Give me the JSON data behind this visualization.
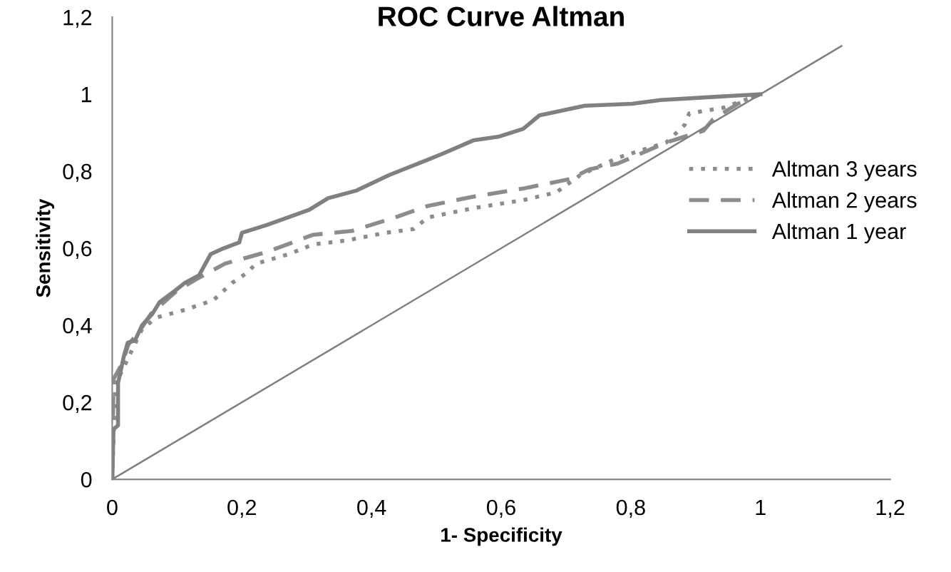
{
  "chart_data": {
    "type": "line",
    "title": "ROC Curve Altman",
    "xlabel": "1- Specificity",
    "ylabel": "Sensitivity",
    "xlim": [
      0,
      1.2
    ],
    "xticks": [
      {
        "value": 0,
        "label": "0"
      },
      {
        "value": 0.2,
        "label": "0,2"
      },
      {
        "value": 0.4,
        "label": "0,4"
      },
      {
        "value": 0.6,
        "label": "0,6"
      },
      {
        "value": 0.8,
        "label": "0,8"
      },
      {
        "value": 1,
        "label": "1"
      },
      {
        "value": 1.2,
        "label": "1,2"
      }
    ],
    "ylim": [
      0,
      1.2
    ],
    "yticks": [
      {
        "value": 0,
        "label": "0"
      },
      {
        "value": 0.2,
        "label": "0,2"
      },
      {
        "value": 0.4,
        "label": "0,4"
      },
      {
        "value": 0.6,
        "label": "0,6"
      },
      {
        "value": 0.8,
        "label": "0,8"
      },
      {
        "value": 1,
        "label": "1"
      },
      {
        "value": 1.2,
        "label": "1,2"
      }
    ],
    "grid": false,
    "legend": "right",
    "series": [
      {
        "name": "Altman 3 years",
        "color": "#8c8c8c",
        "line_style": "dotted",
        "x": [
          0,
          0.005,
          0.009,
          0.046,
          0.068,
          0.112,
          0.156,
          0.185,
          0.207,
          0.222,
          0.273,
          0.31,
          0.361,
          0.421,
          0.465,
          0.487,
          0.56,
          0.634,
          0.685,
          0.722,
          0.78,
          0.855,
          0.883,
          0.89,
          0.943,
          1
        ],
        "values": [
          0,
          0.26,
          0.26,
          0.39,
          0.42,
          0.44,
          0.465,
          0.51,
          0.535,
          0.56,
          0.585,
          0.61,
          0.62,
          0.64,
          0.65,
          0.68,
          0.705,
          0.725,
          0.745,
          0.79,
          0.835,
          0.875,
          0.92,
          0.95,
          0.965,
          1
        ]
      },
      {
        "name": "Altman 2 years",
        "color": "#8c8c8c",
        "line_style": "dashed",
        "x": [
          0,
          0.002,
          0.015,
          0.025,
          0.04,
          0.06,
          0.08,
          0.1,
          0.13,
          0.174,
          0.238,
          0.31,
          0.37,
          0.436,
          0.487,
          0.56,
          0.634,
          0.707,
          0.736,
          0.78,
          0.855,
          0.912,
          0.927,
          0.965,
          1
        ],
        "values": [
          0,
          0.26,
          0.3,
          0.35,
          0.38,
          0.43,
          0.46,
          0.49,
          0.52,
          0.56,
          0.59,
          0.635,
          0.645,
          0.68,
          0.71,
          0.735,
          0.755,
          0.78,
          0.805,
          0.82,
          0.875,
          0.905,
          0.935,
          0.975,
          1
        ]
      },
      {
        "name": "Altman 1 year",
        "color": "#808080",
        "line_style": "solid",
        "x": [
          0,
          0.002,
          0.009,
          0.009,
          0.018,
          0.024,
          0.035,
          0.046,
          0.062,
          0.073,
          0.097,
          0.112,
          0.134,
          0.152,
          0.172,
          0.196,
          0.2,
          0.238,
          0.304,
          0.333,
          0.377,
          0.427,
          0.487,
          0.509,
          0.557,
          0.597,
          0.634,
          0.641,
          0.659,
          0.729,
          0.802,
          0.846,
          1
        ],
        "values": [
          0,
          0.13,
          0.14,
          0.25,
          0.32,
          0.355,
          0.36,
          0.4,
          0.43,
          0.46,
          0.49,
          0.51,
          0.53,
          0.585,
          0.6,
          0.615,
          0.64,
          0.66,
          0.7,
          0.73,
          0.75,
          0.79,
          0.83,
          0.845,
          0.88,
          0.89,
          0.91,
          0.92,
          0.945,
          0.97,
          0.975,
          0.985,
          1
        ]
      },
      {
        "color": "#808080",
        "line_style": "solid",
        "x": [
          0,
          1.125
        ],
        "values": [
          0,
          1.125
        ]
      }
    ]
  }
}
